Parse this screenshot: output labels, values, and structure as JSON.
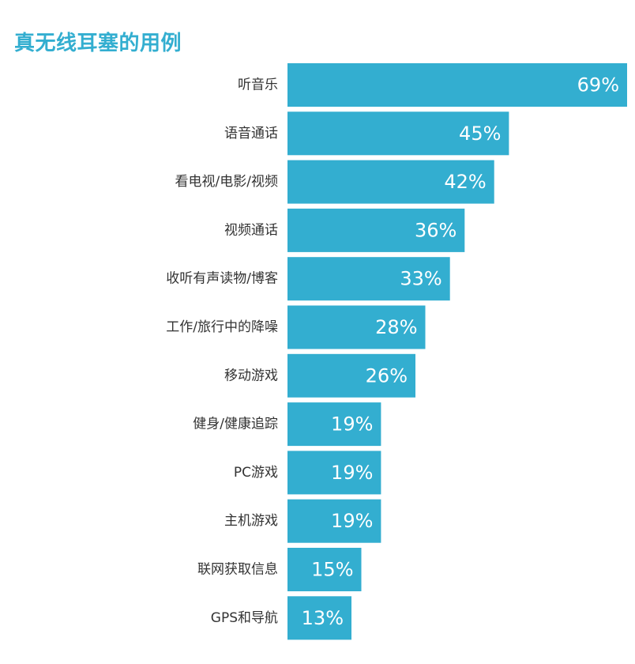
{
  "chart_data": {
    "type": "bar",
    "orientation": "horizontal",
    "title": "真无线耳塞的用例",
    "categories": [
      "听音乐",
      "语音通话",
      "看电视/电影/视频",
      "视频通话",
      "收听有声读物/博客",
      "工作/旅行中的降噪",
      "移动游戏",
      "健身/健康追踪",
      "PC游戏",
      "主机游戏",
      "联网获取信息",
      "GPS和导航"
    ],
    "values": [
      69,
      45,
      42,
      36,
      33,
      28,
      26,
      19,
      19,
      19,
      15,
      13
    ],
    "value_labels": [
      "69%",
      "45%",
      "42%",
      "36%",
      "33%",
      "28%",
      "26%",
      "19%",
      "19%",
      "19%",
      "15%",
      "13%"
    ],
    "xlim": [
      0,
      69
    ],
    "grid": false,
    "legend": "none",
    "bar_color": "#33aed0",
    "value_label_color": "#ffffff",
    "category_label_color": "#333333"
  }
}
